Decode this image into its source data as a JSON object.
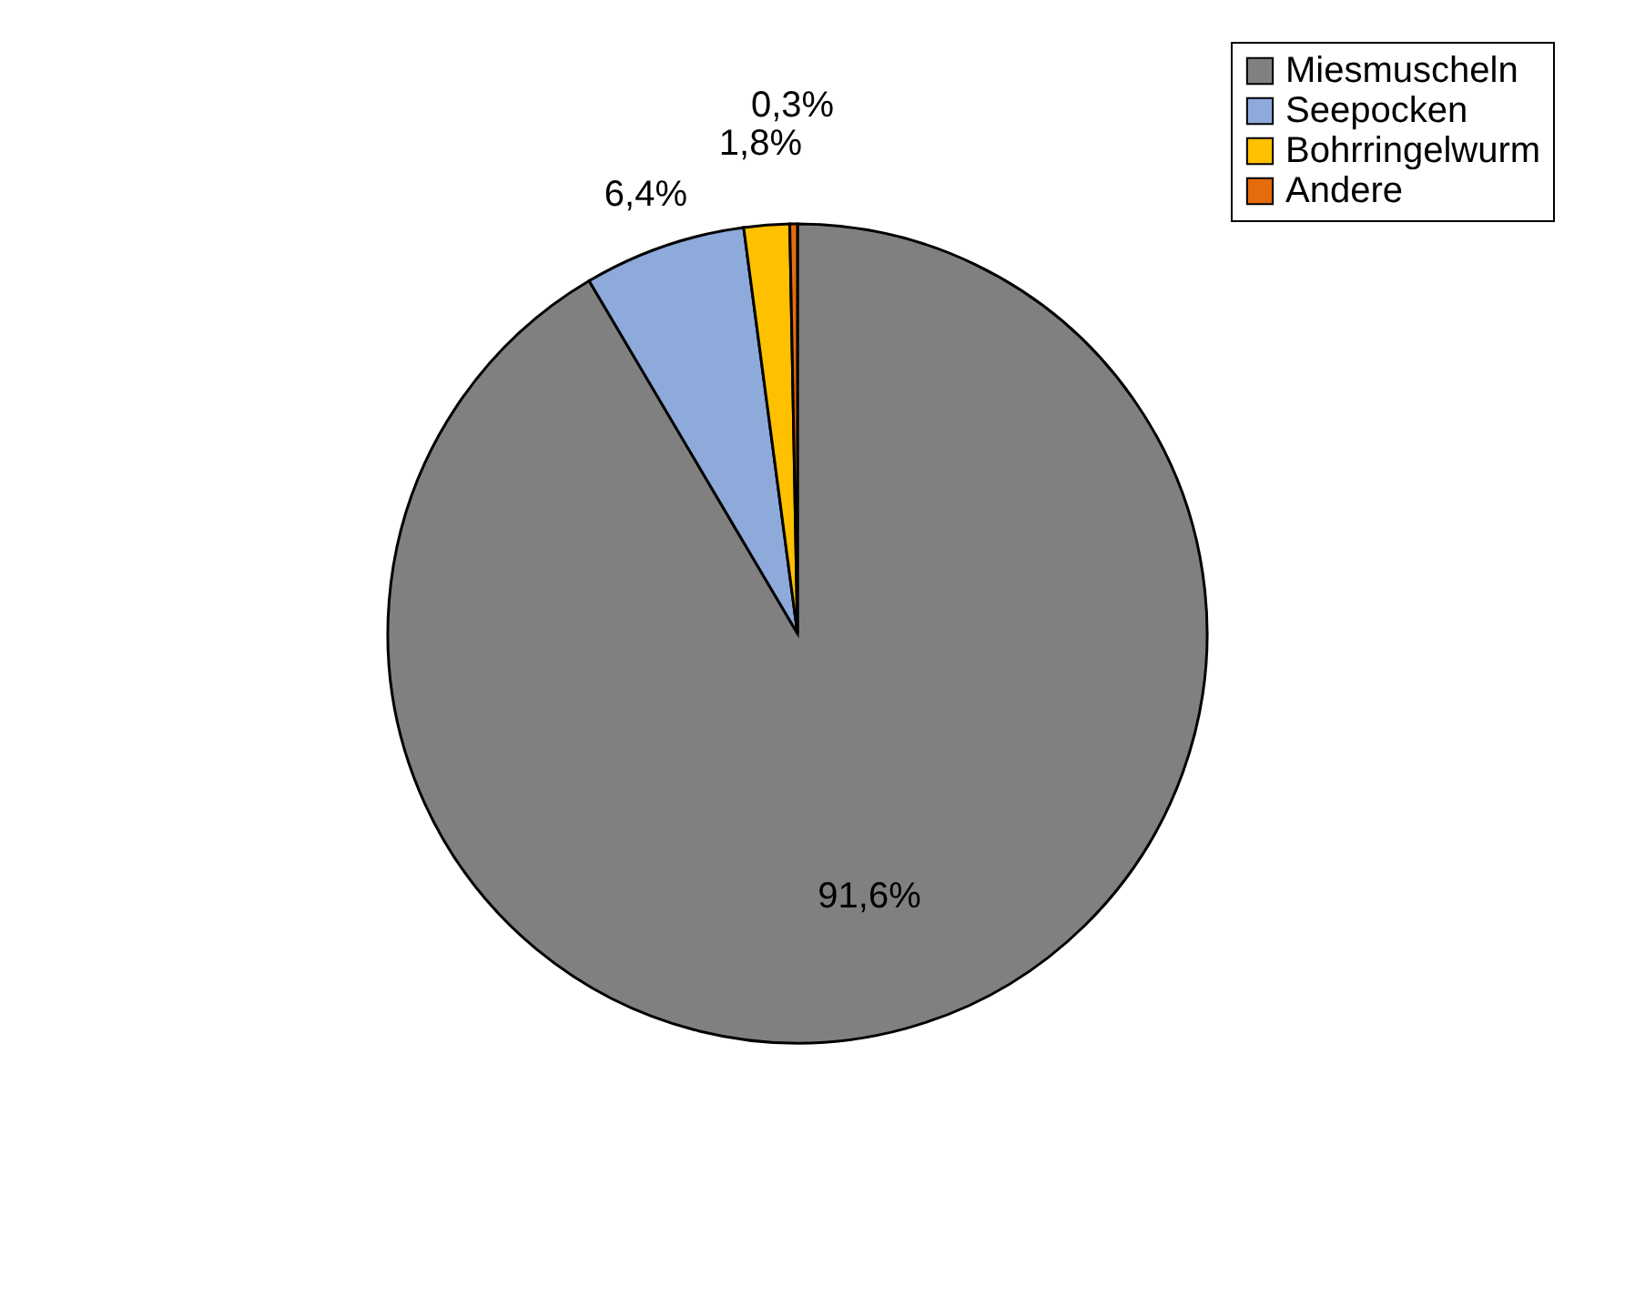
{
  "chart_data": {
    "type": "pie",
    "categories": [
      "Miesmuscheln",
      "Seepocken",
      "Bohrringelwurm",
      "Andere"
    ],
    "values": [
      91.6,
      6.4,
      1.8,
      0.3
    ],
    "colors": [
      "#808080",
      "#8eaadb",
      "#ffc000",
      "#e46c0a"
    ],
    "value_labels": [
      "91,6%",
      "6,4%",
      "1,8%",
      "0,3%"
    ],
    "legend": "top right"
  }
}
